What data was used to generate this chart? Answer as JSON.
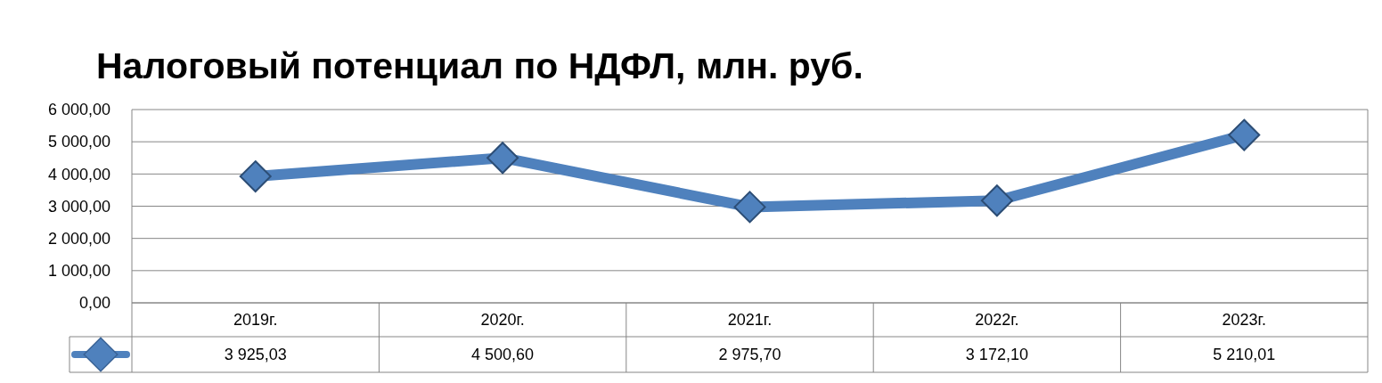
{
  "chart_data": {
    "type": "line",
    "title": "Налоговый потенциал по НДФЛ, млн. руб.",
    "categories": [
      "2019г.",
      "2020г.",
      "2021г.",
      "2022г.",
      "2023г."
    ],
    "series": [
      {
        "color": "#4f81bd",
        "values": [
          3925.03,
          4500.6,
          2975.7,
          3172.1,
          5210.01
        ],
        "value_labels": [
          "3 925,03",
          "4 500,60",
          "2 975,70",
          "3 172,10",
          "5 210,01"
        ]
      }
    ],
    "ylim": [
      0,
      6000
    ],
    "yticks": [
      {
        "value": 0,
        "label": "0,00"
      },
      {
        "value": 1000,
        "label": "1 000,00"
      },
      {
        "value": 2000,
        "label": "2 000,00"
      },
      {
        "value": 3000,
        "label": "3 000,00"
      },
      {
        "value": 4000,
        "label": "4 000,00"
      },
      {
        "value": 5000,
        "label": "5 000,00"
      },
      {
        "value": 6000,
        "label": "6 000,00"
      }
    ],
    "grid": "y",
    "marker": "diamond",
    "line_style": "solid"
  }
}
